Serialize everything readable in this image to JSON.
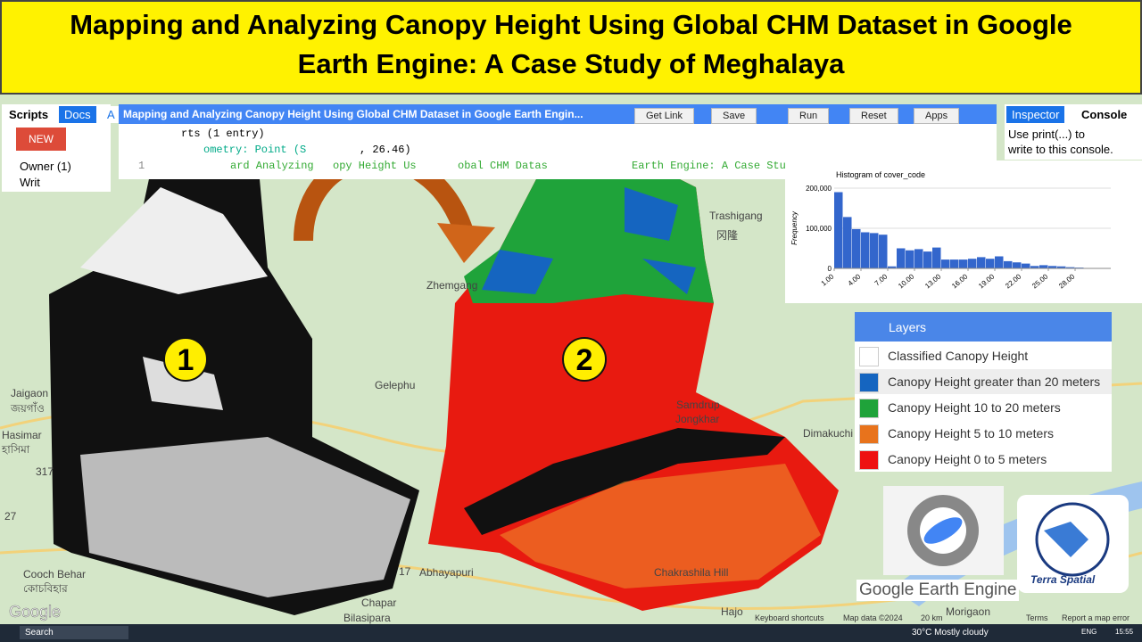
{
  "banner": {
    "line1": "Mapping and Analyzing Canopy Height Using Global CHM Dataset in Google",
    "line2": "Earth Engine: A Case Study of Meghalaya"
  },
  "left_panel": {
    "tabs": [
      "Scripts",
      "Docs",
      "A"
    ],
    "new_button": "NEW",
    "tree": [
      "Owner (1)",
      "Writ"
    ]
  },
  "editor": {
    "title": "Mapping and Analyzing Canopy Height Using Global CHM Dataset in Google Earth Engin...",
    "buttons": [
      "Get Link",
      "Save",
      "Run",
      "Reset",
      "Apps"
    ],
    "lines": [
      "rts (1 entry)",
      "ometry: Point (S",
      ", 26.46)",
      "1",
      "ard Analyzing",
      "opy Height Us",
      "obal CHM Datas",
      "Earth Engine: A Case Stu"
    ]
  },
  "right_panel": {
    "tabs": [
      "Inspector",
      "Console"
    ],
    "console_text": [
      "Use print(...) to",
      "write to this console."
    ]
  },
  "chart_data": {
    "type": "histogram",
    "title": "Histogram of cover_code",
    "y_label": "Frequency",
    "color": "#3366cc",
    "grid": true,
    "bins": [
      1,
      2,
      3,
      4,
      5,
      6,
      7,
      8,
      9,
      10,
      11,
      12,
      13,
      14,
      15,
      16,
      17,
      18,
      19,
      20,
      21,
      22,
      23,
      24,
      25,
      26,
      27,
      28,
      29,
      30
    ],
    "values": [
      190000,
      128000,
      98000,
      90000,
      88000,
      84000,
      5000,
      50000,
      45000,
      48000,
      42000,
      52000,
      22000,
      22000,
      22000,
      24000,
      28000,
      24000,
      30000,
      18000,
      15000,
      12000,
      6000,
      8000,
      6000,
      5000,
      3000,
      2000,
      1000
    ],
    "xlim": [
      1,
      32
    ],
    "ylim": [
      0,
      200000
    ],
    "xticks": [
      {
        "value": 1,
        "label": "1.00"
      },
      {
        "value": 4,
        "label": "4.00"
      },
      {
        "value": 7,
        "label": "7.00"
      },
      {
        "value": 10,
        "label": "10.00"
      },
      {
        "value": 13,
        "label": "13.00"
      },
      {
        "value": 16,
        "label": "16.00"
      },
      {
        "value": 19,
        "label": "19.00"
      },
      {
        "value": 22,
        "label": "22.00"
      },
      {
        "value": 25,
        "label": "25.00"
      },
      {
        "value": 28,
        "label": "28.00"
      }
    ],
    "yticks": [
      0,
      {
        "value": 100000,
        "label": "100,000"
      },
      {
        "value": 200000,
        "label": "200,000"
      }
    ]
  },
  "layers": {
    "title": "Layers",
    "items": [
      {
        "name": "Classified Canopy Height",
        "color": "#ffffff"
      },
      {
        "name": "Canopy Height greater than 20 meters",
        "color": "#1565c0"
      },
      {
        "name": "Canopy Height 10 to 20 meters",
        "color": "#1fa33a"
      },
      {
        "name": "Canopy Height 5 to 10 meters",
        "color": "#e8731c"
      },
      {
        "name": "Canopy Height 0 to 5 meters",
        "color": "#ee1111"
      }
    ]
  },
  "map": {
    "markers": [
      "1",
      "2"
    ],
    "places": [
      "Trashigang",
      "冈隆",
      "Zhemgang",
      "Gelephu",
      "Samdrup",
      "Jongkhar",
      "Dimakuchi",
      "Jaigaon",
      "জয়গাঁও",
      "Hasimar",
      "হাসিমা",
      "Cooch Behar",
      "কোচবিহার",
      "Chakrashila Hill",
      "Abhayapuri",
      "Chapar",
      "Bilasipara",
      "Hajo",
      "Morigaon",
      "317",
      "27",
      "17"
    ],
    "google": "Google",
    "footer": [
      "Keyboard shortcuts",
      "Map data ©2024",
      "20 km",
      "Terms",
      "Report a map error"
    ]
  },
  "logos": {
    "gee": "Google Earth Engine",
    "terra": "Terra Spatial"
  },
  "taskbar": {
    "search": "Search",
    "weather": "30°C  Mostly cloudy",
    "lang": "ENG",
    "time": "15:55"
  }
}
